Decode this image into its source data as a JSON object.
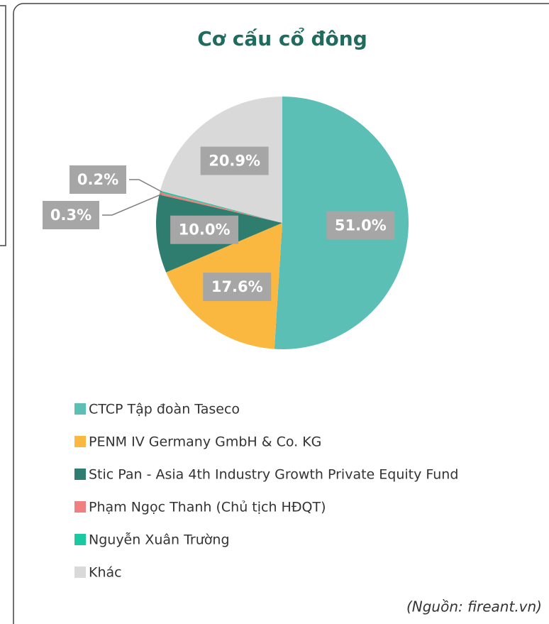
{
  "chart_data": {
    "type": "pie",
    "title": "Cơ cấu cổ đông",
    "categories": [
      "CTCP Tập đoàn Taseco",
      "PENM IV Germany GmbH & Co. KG",
      "Stic Pan - Asia 4th Industry Growth Private Equity Fund",
      "Phạm Ngọc Thanh (Chủ tịch HĐQT)",
      "Nguyễn Xuân Trường",
      "Khác"
    ],
    "values": [
      51.0,
      17.6,
      10.0,
      0.3,
      0.2,
      20.9
    ],
    "value_labels": [
      "51.0%",
      "17.6%",
      "10.0%",
      "0.3%",
      "0.2%",
      "20.9%"
    ],
    "colors": [
      "#5bbfb5",
      "#fbb840",
      "#2e7d6f",
      "#f08080",
      "#1ac9a0",
      "#d9d9d9"
    ],
    "legend": "bottom",
    "source": "(Nguồn: fireant.vn)"
  }
}
